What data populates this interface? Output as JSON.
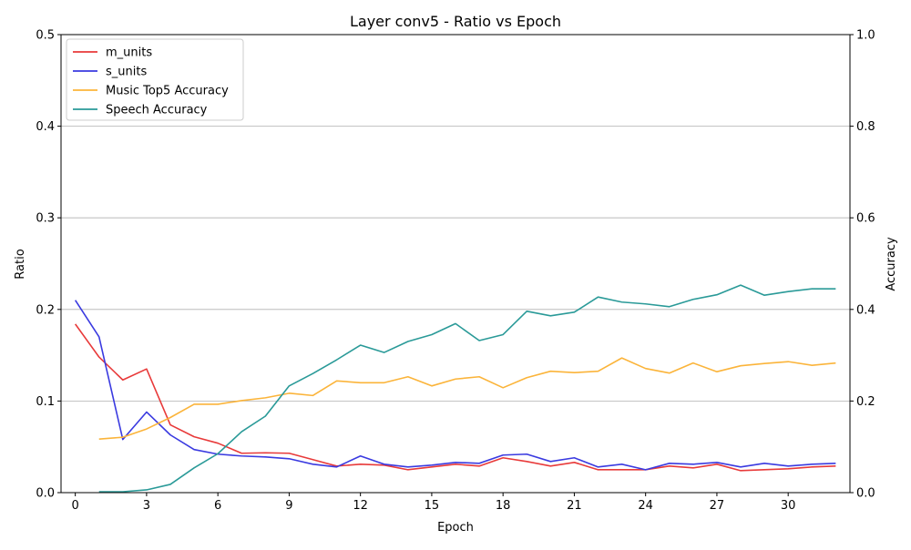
{
  "chart_data": {
    "type": "line",
    "title": "Layer conv5 - Ratio vs Epoch",
    "xlabel": "Epoch",
    "ylabel": "Ratio",
    "y2label": "Accuracy",
    "xlim": [
      -0.6,
      32.6
    ],
    "ylim": [
      0,
      0.5
    ],
    "y2lim": [
      0,
      1.0
    ],
    "xticks": [
      0,
      3,
      6,
      9,
      12,
      15,
      18,
      21,
      24,
      27,
      30
    ],
    "yticks": [
      0.0,
      0.1,
      0.2,
      0.3,
      0.4,
      0.5
    ],
    "yticklabels": [
      "0.0",
      "0.1",
      "0.2",
      "0.3",
      "0.4",
      "0.5"
    ],
    "y2ticks": [
      0.0,
      0.2,
      0.4,
      0.6,
      0.8,
      1.0
    ],
    "y2ticklabels": [
      "0.0",
      "0.2",
      "0.4",
      "0.6",
      "0.8",
      "1.0"
    ],
    "grid": "horizontal (left axis)",
    "legend_position": "top-left",
    "series": [
      {
        "name": "m_units",
        "axis": "left",
        "color": "#e83a3a",
        "x": [
          0,
          1,
          2,
          3,
          4,
          5,
          6,
          7,
          8,
          9,
          10,
          11,
          12,
          13,
          14,
          15,
          16,
          17,
          18,
          19,
          20,
          21,
          22,
          23,
          24,
          25,
          26,
          27,
          28,
          29,
          30,
          31,
          32
        ],
        "values": [
          0.184,
          0.148,
          0.123,
          0.135,
          0.074,
          0.061,
          0.054,
          0.043,
          0.0435,
          0.043,
          0.036,
          0.029,
          0.031,
          0.03,
          0.025,
          0.028,
          0.031,
          0.029,
          0.038,
          0.034,
          0.029,
          0.033,
          0.025,
          0.025,
          0.025,
          0.029,
          0.027,
          0.031,
          0.024,
          0.025,
          0.026,
          0.028,
          0.029
        ]
      },
      {
        "name": "s_units",
        "axis": "left",
        "color": "#3a3ae0",
        "x": [
          0,
          1,
          2,
          3,
          4,
          5,
          6,
          7,
          8,
          9,
          10,
          11,
          12,
          13,
          14,
          15,
          16,
          17,
          18,
          19,
          20,
          21,
          22,
          23,
          24,
          25,
          26,
          27,
          28,
          29,
          30,
          31,
          32
        ],
        "values": [
          0.21,
          0.17,
          0.058,
          0.088,
          0.063,
          0.047,
          0.042,
          0.04,
          0.039,
          0.037,
          0.031,
          0.028,
          0.04,
          0.031,
          0.028,
          0.03,
          0.033,
          0.032,
          0.041,
          0.042,
          0.034,
          0.038,
          0.028,
          0.031,
          0.025,
          0.032,
          0.031,
          0.033,
          0.028,
          0.032,
          0.029,
          0.031,
          0.032
        ]
      },
      {
        "name": "Music Top5 Accuracy",
        "axis": "right",
        "color": "#fbb43a",
        "x": [
          1,
          2,
          3,
          4,
          5,
          6,
          7,
          8,
          9,
          10,
          11,
          12,
          13,
          14,
          15,
          16,
          17,
          18,
          19,
          20,
          21,
          22,
          23,
          24,
          25,
          26,
          27,
          28,
          29,
          30,
          31,
          32
        ],
        "values": [
          0.117,
          0.121,
          0.139,
          0.164,
          0.193,
          0.193,
          0.201,
          0.207,
          0.217,
          0.212,
          0.244,
          0.24,
          0.24,
          0.253,
          0.233,
          0.248,
          0.253,
          0.229,
          0.251,
          0.265,
          0.262,
          0.265,
          0.294,
          0.271,
          0.261,
          0.283,
          0.264,
          0.277,
          0.282,
          0.286,
          0.278,
          0.283
        ]
      },
      {
        "name": "Speech Accuracy",
        "axis": "right",
        "color": "#2a9a98",
        "x": [
          1,
          2,
          3,
          4,
          5,
          6,
          7,
          8,
          9,
          10,
          11,
          12,
          13,
          14,
          15,
          16,
          17,
          18,
          19,
          20,
          21,
          22,
          23,
          24,
          25,
          26,
          27,
          28,
          29,
          30,
          31,
          32
        ],
        "values": [
          0.002,
          0.002,
          0.006,
          0.018,
          0.054,
          0.085,
          0.133,
          0.167,
          0.233,
          0.26,
          0.29,
          0.322,
          0.306,
          0.33,
          0.345,
          0.369,
          0.332,
          0.345,
          0.396,
          0.386,
          0.394,
          0.427,
          0.416,
          0.412,
          0.406,
          0.422,
          0.432,
          0.453,
          0.431,
          0.439,
          0.445,
          0.445
        ]
      }
    ]
  }
}
